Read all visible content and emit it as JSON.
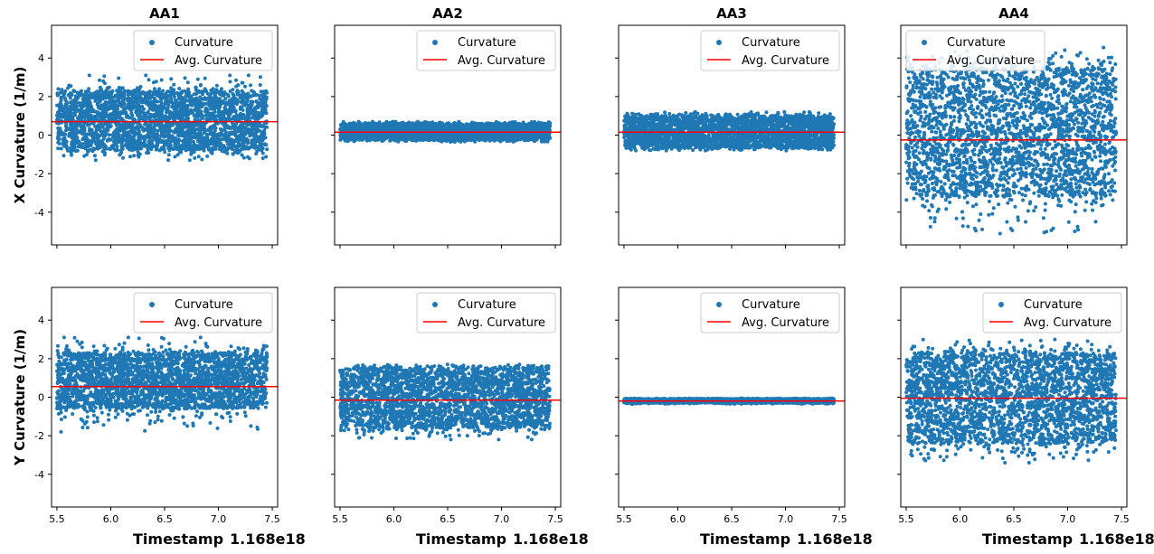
{
  "chart_data": {
    "type": "scatter",
    "layout": {
      "rows": 2,
      "cols": 4,
      "sharex": true,
      "sharey": true
    },
    "columns": [
      "AA1",
      "AA2",
      "AA3",
      "AA4"
    ],
    "row_labels": [
      "X Curvature (1/m)",
      "Y Curvature (1/m)"
    ],
    "xlabel": "Timestamp",
    "x_offset_label": "1.168e18",
    "xlim": [
      5.45,
      7.55
    ],
    "ylim": [
      -5.7,
      5.7
    ],
    "xticks": [
      5.5,
      6.0,
      6.5,
      7.0,
      7.5
    ],
    "xtick_labels": [
      "5.5",
      "6.0",
      "6.5",
      "7.0",
      "7.5"
    ],
    "yticks": [
      4,
      2,
      0,
      -2,
      -4
    ],
    "ytick_labels": [
      "4",
      "2",
      "0",
      "-2",
      "-4"
    ],
    "x_range_data": [
      5.5,
      7.45
    ],
    "legend_labels": {
      "points": "Curvature",
      "line": "Avg. Curvature"
    },
    "colors": {
      "points": "#1f77b4",
      "line": "#ff0000"
    },
    "panels": [
      {
        "row": 0,
        "col": 0,
        "column": "AA1",
        "mean": 0.7,
        "band": [
          -0.75,
          2.3
        ],
        "min": -1.3,
        "max": 3.1,
        "legend": "upper-right"
      },
      {
        "row": 0,
        "col": 1,
        "column": "AA2",
        "mean": 0.15,
        "band": [
          -0.25,
          0.6
        ],
        "min": -0.35,
        "max": 0.7,
        "legend": "upper-right"
      },
      {
        "row": 0,
        "col": 2,
        "column": "AA3",
        "mean": 0.15,
        "band": [
          -0.65,
          1.0
        ],
        "min": -0.8,
        "max": 1.2,
        "legend": "upper-right"
      },
      {
        "row": 0,
        "col": 3,
        "column": "AA4",
        "mean": -0.25,
        "band": [
          -3.2,
          3.5
        ],
        "min": -5.3,
        "max": 4.6,
        "legend": "upper-left"
      },
      {
        "row": 1,
        "col": 0,
        "column": "AA1",
        "mean": 0.55,
        "band": [
          -0.6,
          2.3
        ],
        "min": -1.8,
        "max": 3.1,
        "legend": "upper-right"
      },
      {
        "row": 1,
        "col": 1,
        "column": "AA2",
        "mean": -0.15,
        "band": [
          -1.6,
          1.5
        ],
        "min": -2.2,
        "max": 1.7,
        "legend": "upper-right"
      },
      {
        "row": 1,
        "col": 2,
        "column": "AA3",
        "mean": -0.2,
        "band": [
          -0.3,
          -0.08
        ],
        "min": -0.35,
        "max": -0.05,
        "legend": "upper-right"
      },
      {
        "row": 1,
        "col": 3,
        "column": "AA4",
        "mean": -0.05,
        "band": [
          -2.4,
          2.3
        ],
        "min": -3.4,
        "max": 3.0,
        "legend": "upper-right"
      }
    ]
  }
}
